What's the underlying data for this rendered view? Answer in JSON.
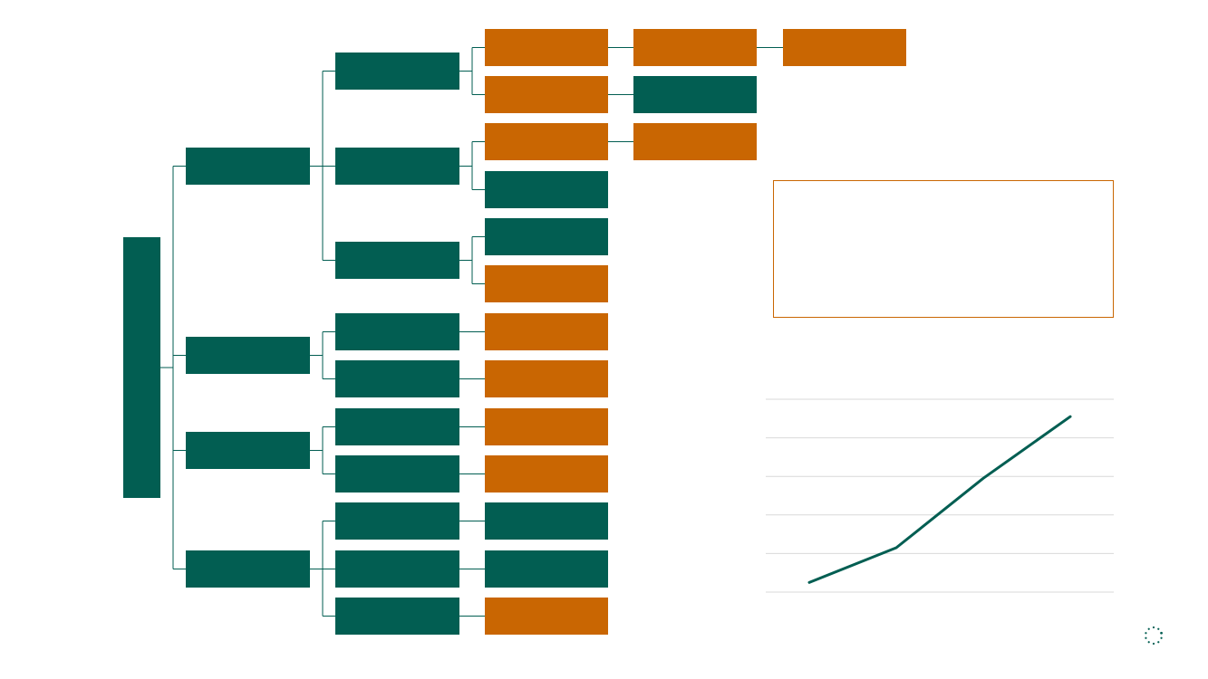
{
  "colors": {
    "green": "#025e52",
    "orange": "#c96602",
    "connector": "#025e52",
    "gridline": "#d9d9d9",
    "note_border": "#c96602"
  },
  "diagram": {
    "type": "tree",
    "direction": "left-to-right",
    "root": {
      "color": "green",
      "label": "",
      "children": [
        {
          "color": "green",
          "label": "",
          "children": [
            {
              "color": "green",
              "label": "",
              "children": [
                {
                  "color": "orange",
                  "label": "",
                  "children": [
                    {
                      "color": "orange",
                      "label": "",
                      "children": [
                        {
                          "color": "orange",
                          "label": "",
                          "children": []
                        }
                      ]
                    }
                  ]
                },
                {
                  "color": "orange",
                  "label": "",
                  "children": [
                    {
                      "color": "green",
                      "label": "",
                      "children": []
                    }
                  ]
                }
              ]
            },
            {
              "color": "green",
              "label": "",
              "children": [
                {
                  "color": "orange",
                  "label": "",
                  "children": [
                    {
                      "color": "orange",
                      "label": "",
                      "children": []
                    }
                  ]
                },
                {
                  "color": "green",
                  "label": "",
                  "children": []
                }
              ]
            },
            {
              "color": "green",
              "label": "",
              "children": [
                {
                  "color": "green",
                  "label": "",
                  "children": []
                },
                {
                  "color": "orange",
                  "label": "",
                  "children": []
                }
              ]
            }
          ]
        },
        {
          "color": "green",
          "label": "",
          "children": [
            {
              "color": "green",
              "label": "",
              "children": [
                {
                  "color": "orange",
                  "label": "",
                  "children": []
                }
              ]
            },
            {
              "color": "green",
              "label": "",
              "children": [
                {
                  "color": "orange",
                  "label": "",
                  "children": []
                }
              ]
            }
          ]
        },
        {
          "color": "green",
          "label": "",
          "children": [
            {
              "color": "green",
              "label": "",
              "children": [
                {
                  "color": "orange",
                  "label": "",
                  "children": []
                }
              ]
            },
            {
              "color": "green",
              "label": "",
              "children": [
                {
                  "color": "orange",
                  "label": "",
                  "children": []
                }
              ]
            }
          ]
        },
        {
          "color": "green",
          "label": "",
          "children": [
            {
              "color": "green",
              "label": "",
              "children": [
                {
                  "color": "green",
                  "label": "",
                  "children": []
                }
              ]
            },
            {
              "color": "green",
              "label": "",
              "children": [
                {
                  "color": "green",
                  "label": "",
                  "children": []
                }
              ]
            },
            {
              "color": "green",
              "label": "",
              "children": [
                {
                  "color": "orange",
                  "label": "",
                  "children": []
                }
              ]
            }
          ]
        }
      ]
    }
  },
  "note": {
    "text": ""
  },
  "chart_data": {
    "type": "line",
    "title": "",
    "xlabel": "",
    "ylabel": "",
    "x": [
      1,
      2,
      3,
      4
    ],
    "series": [
      {
        "values": [
          0.15,
          1.05,
          2.85,
          4.45
        ]
      }
    ],
    "ylim": [
      -0.1,
      4.9
    ],
    "grid": true,
    "legend": "none"
  },
  "logo": {
    "icon": "dotted-circle-icon"
  }
}
